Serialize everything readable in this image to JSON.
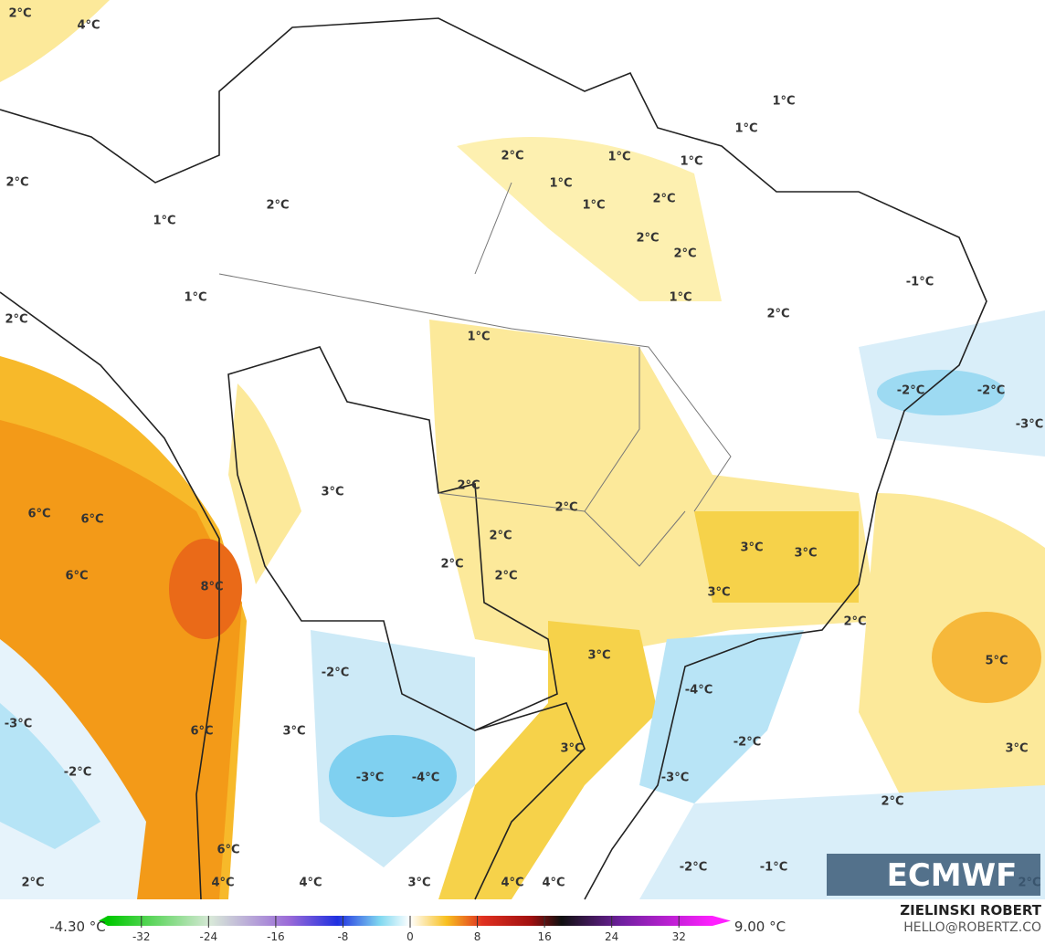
{
  "map": {
    "labels": [
      "2°C",
      "4°C",
      "2°C",
      "1°C",
      "2°C",
      "1°C",
      "2°C",
      "2°C",
      "1°C",
      "1°C",
      "1°C",
      "1°C",
      "2°C",
      "2°C",
      "2°C",
      "1°C",
      "1°C",
      "1°C",
      "2°C",
      "-1°C",
      "-2°C",
      "-2°C",
      "-3°C",
      "1°C",
      "3°C",
      "2°C",
      "2°C",
      "2°C",
      "2°C",
      "2°C",
      "6°C",
      "6°C",
      "6°C",
      "8°C",
      "3°C",
      "3°C",
      "3°C",
      "2°C",
      "3°C",
      "5°C",
      "-2°C",
      "-4°C",
      "-3°C",
      "6°C",
      "3°C",
      "3°C",
      "-2°C",
      "3°C",
      "-2°C",
      "-3°C",
      "-4°C",
      "-3°C",
      "2°C",
      "6°C",
      "-2°C",
      "-1°C",
      "2°C",
      "4°C",
      "4°C",
      "3°C",
      "4°C",
      "4°C",
      "2°C"
    ]
  },
  "colorbar": {
    "min_label": "-4.30 °C",
    "max_label": "9.00 °C",
    "lim": [
      -36,
      36
    ],
    "ticks": [
      -32,
      -24,
      -16,
      -8,
      0,
      8,
      16,
      24,
      32
    ]
  },
  "logo": "ECMWF",
  "author": "ZIELINSKI ROBERT",
  "email": "HELLO@ROBERTZ.CO"
}
